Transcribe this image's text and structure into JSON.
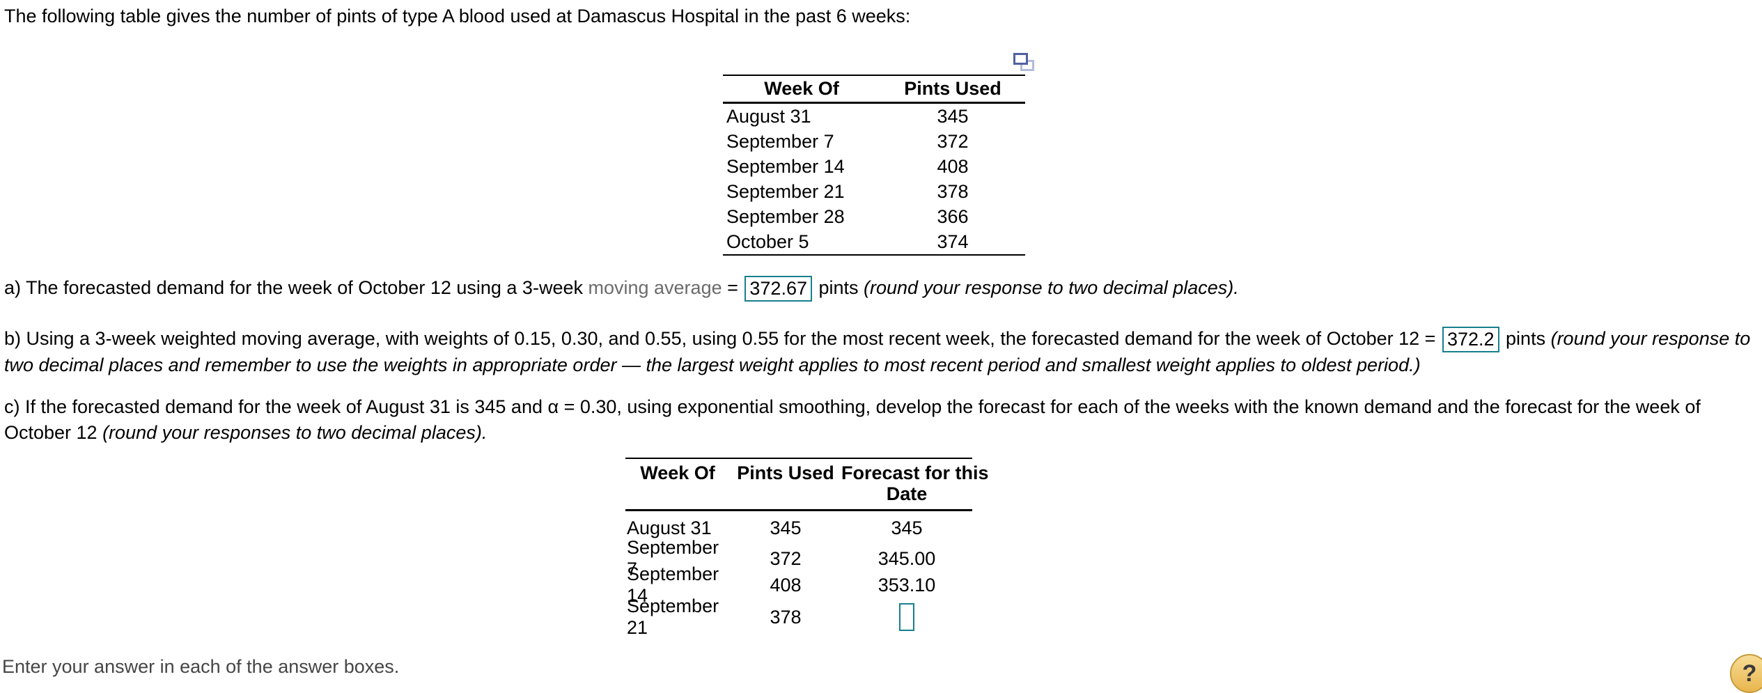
{
  "colors": {
    "answer_box_border": "#17808d",
    "term_text": "#6b6b6b",
    "help_button_fill": "#eab94d",
    "help_button_border": "#c69c3c",
    "popout_icon_front": "#51619f",
    "popout_icon_back": "#b3bcda"
  },
  "icons": {
    "table_popout": "duplicate-window-icon",
    "help": "question-mark-icon"
  },
  "intro": "The following table gives the number of pints of type A blood used at Damascus Hospital in the past 6 weeks:",
  "data_table": {
    "headers": [
      "Week Of",
      "Pints Used"
    ],
    "rows": [
      {
        "week": "August 31",
        "pints": "345"
      },
      {
        "week": "September 7",
        "pints": "372"
      },
      {
        "week": "September 14",
        "pints": "408"
      },
      {
        "week": "September 21",
        "pints": "378"
      },
      {
        "week": "September 28",
        "pints": "366"
      },
      {
        "week": "October 5",
        "pints": "374"
      }
    ]
  },
  "part_a": {
    "text_before": "a) The forecasted demand for the week of October 12 using a 3-week ",
    "term": "moving average",
    "equals": " = ",
    "answer": "372.67",
    "text_after": " pints ",
    "note_italic": "(round your response to two decimal places)."
  },
  "part_b": {
    "text_before": "b) Using a 3-week weighted moving average, with weights of 0.15, 0.30, and 0.55, using 0.55 for the most recent week, the forecasted demand for the week of October 12 = ",
    "answer": "372.2",
    "text_after": " pints ",
    "note_italic": "(round your response to two decimal places and remember to use the weights in appropriate order — the largest weight applies to most recent period and smallest weight applies to oldest period.)"
  },
  "part_c": {
    "text": "c) If the forecasted demand for the week of August 31 is 345 and α = 0.30, using exponential smoothing, develop the forecast for each of the weeks with the known demand and the forecast for the week of October 12 ",
    "note_italic": "(round your responses to two decimal places)."
  },
  "forecast_table": {
    "headers": [
      "Week Of",
      "Pints Used"
    ],
    "forecast_header_line1": "Forecast for this",
    "forecast_header_line2": "Date",
    "rows": [
      {
        "week": "August 31",
        "pints": "345",
        "forecast": "345"
      },
      {
        "week": "September 7",
        "pints": "372",
        "forecast": "345.00"
      },
      {
        "week": "September 14",
        "pints": "408",
        "forecast": "353.10"
      },
      {
        "week": "September 21",
        "pints": "378",
        "forecast": ""
      }
    ]
  },
  "footer_instruction": "Enter your answer in each of the answer boxes.",
  "help_button_label": "?"
}
